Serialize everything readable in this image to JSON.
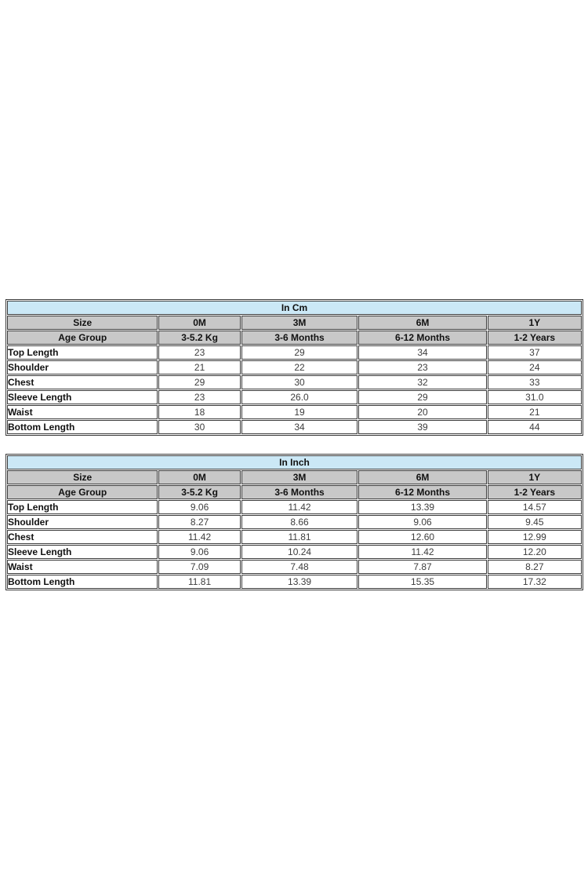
{
  "colors": {
    "title_bg": "#cbe8f6",
    "header_bg": "#c8c8c8",
    "border": "#3b3b3b",
    "label_text": "#111111",
    "value_text": "#3d3d3d",
    "page_bg": "#ffffff"
  },
  "tables": [
    {
      "title": "In Cm",
      "header_rows": [
        {
          "label": "Size",
          "cols": [
            "0M",
            "3M",
            "6M",
            "1Y"
          ]
        },
        {
          "label": "Age Group",
          "cols": [
            "3-5.2 Kg",
            "3-6 Months",
            "6-12 Months",
            "1-2 Years"
          ]
        }
      ],
      "rows": [
        {
          "label": "Top Length",
          "values": [
            "23",
            "29",
            "34",
            "37"
          ]
        },
        {
          "label": "Shoulder",
          "values": [
            "21",
            "22",
            "23",
            "24"
          ]
        },
        {
          "label": "Chest",
          "values": [
            "29",
            "30",
            "32",
            "33"
          ]
        },
        {
          "label": "Sleeve Length",
          "values": [
            "23",
            "26.0",
            "29",
            "31.0"
          ]
        },
        {
          "label": "Waist",
          "values": [
            "18",
            "19",
            "20",
            "21"
          ]
        },
        {
          "label": "Bottom Length",
          "values": [
            "30",
            "34",
            "39",
            "44"
          ]
        }
      ]
    },
    {
      "title": "In Inch",
      "header_rows": [
        {
          "label": "Size",
          "cols": [
            "0M",
            "3M",
            "6M",
            "1Y"
          ]
        },
        {
          "label": "Age Group",
          "cols": [
            "3-5.2 Kg",
            "3-6 Months",
            "6-12 Months",
            "1-2 Years"
          ]
        }
      ],
      "rows": [
        {
          "label": "Top Length",
          "values": [
            "9.06",
            "11.42",
            "13.39",
            "14.57"
          ]
        },
        {
          "label": "Shoulder",
          "values": [
            "8.27",
            "8.66",
            "9.06",
            "9.45"
          ]
        },
        {
          "label": "Chest",
          "values": [
            "11.42",
            "11.81",
            "12.60",
            "12.99"
          ]
        },
        {
          "label": "Sleeve Length",
          "values": [
            "9.06",
            "10.24",
            "11.42",
            "12.20"
          ]
        },
        {
          "label": "Waist",
          "values": [
            "7.09",
            "7.48",
            "7.87",
            "8.27"
          ]
        },
        {
          "label": "Bottom Length",
          "values": [
            "11.81",
            "13.39",
            "15.35",
            "17.32"
          ]
        }
      ]
    }
  ]
}
